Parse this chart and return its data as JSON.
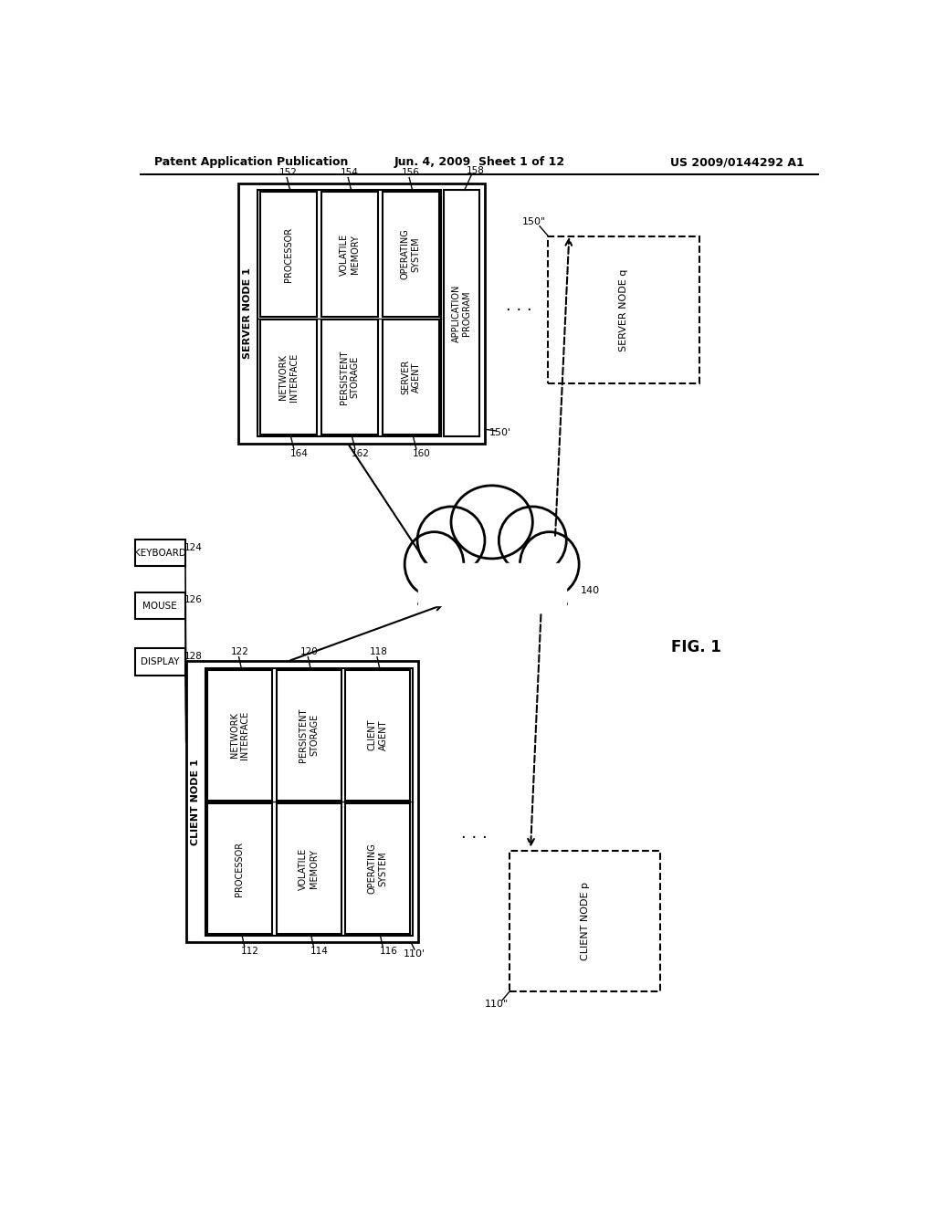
{
  "title_left": "Patent Application Publication",
  "title_mid": "Jun. 4, 2009  Sheet 1 of 12",
  "title_right": "US 2009/0144292 A1",
  "fig_label": "FIG. 1",
  "background": "#ffffff"
}
